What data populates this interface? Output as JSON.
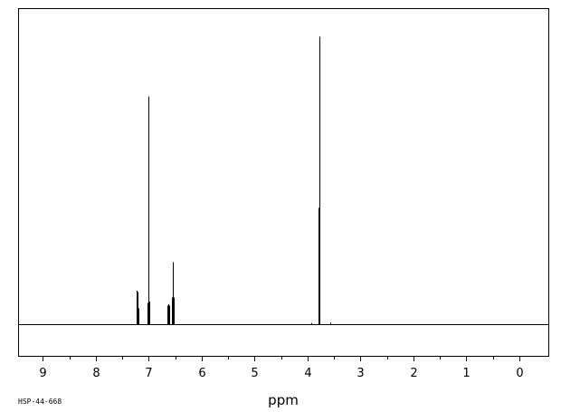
{
  "chart_data": {
    "type": "line",
    "xlabel": "ppm",
    "xlim": [
      9.45,
      -0.55
    ],
    "ylim": [
      0,
      100
    ],
    "x_ticks": [
      9,
      8,
      7,
      6,
      5,
      4,
      3,
      2,
      1,
      0
    ],
    "reversed_x_axis": true,
    "grid": false,
    "legend": "none",
    "peaks": [
      {
        "x": 7.232,
        "y": 12.5
      },
      {
        "x": 7.218,
        "y": 12.0
      },
      {
        "x": 7.205,
        "y": 7.0
      },
      {
        "x": 7.195,
        "y": 6.0
      },
      {
        "x": 7.015,
        "y": 8.0
      },
      {
        "x": 7.005,
        "y": 84.0
      },
      {
        "x": 6.995,
        "y": 8.5
      },
      {
        "x": 6.64,
        "y": 7.0
      },
      {
        "x": 6.625,
        "y": 7.5
      },
      {
        "x": 6.61,
        "y": 7.0
      },
      {
        "x": 6.56,
        "y": 10.0
      },
      {
        "x": 6.548,
        "y": 23.0
      },
      {
        "x": 6.535,
        "y": 10.0
      },
      {
        "x": 6.52,
        "y": 2.5
      },
      {
        "x": 3.79,
        "y": 43.0
      },
      {
        "x": 3.775,
        "y": 106.0
      },
      {
        "x": 3.93,
        "y": 0.6
      },
      {
        "x": 3.57,
        "y": 0.7
      }
    ]
  },
  "footer": {
    "code": "HSP-44-668"
  }
}
